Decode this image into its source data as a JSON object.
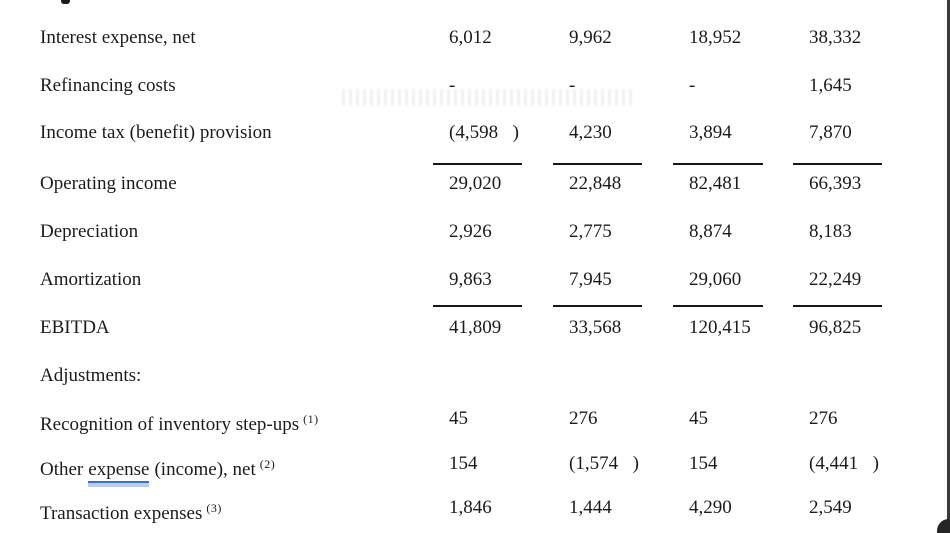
{
  "colors": {
    "text": "#1b1b1b",
    "rule": "#161616",
    "underline_accent": "#3f6fc8",
    "window_border": "#3a3a3a",
    "background": "#ffffff"
  },
  "table": {
    "rows": [
      {
        "label": "Interest expense, net",
        "sup": "",
        "cells": [
          {
            "t": "6,012",
            "p": ""
          },
          {
            "t": "9,962",
            "p": ""
          },
          {
            "t": "18,952",
            "p": ""
          },
          {
            "t": "38,332",
            "p": ""
          }
        ]
      },
      {
        "label": "Refinancing costs",
        "sup": "",
        "cells": [
          {
            "t": "-",
            "p": ""
          },
          {
            "t": "-",
            "p": ""
          },
          {
            "t": "-",
            "p": ""
          },
          {
            "t": "1,645",
            "p": ""
          }
        ]
      },
      {
        "label": "Income tax (benefit) provision",
        "sup": "",
        "cells": [
          {
            "t": "(4,598",
            "p": ")"
          },
          {
            "t": "4,230",
            "p": ""
          },
          {
            "t": "3,894",
            "p": ""
          },
          {
            "t": "7,870",
            "p": ""
          }
        ]
      },
      {
        "label": "Operating income",
        "sup": "",
        "rule_above": true,
        "cells": [
          {
            "t": "29,020",
            "p": ""
          },
          {
            "t": "22,848",
            "p": ""
          },
          {
            "t": "82,481",
            "p": ""
          },
          {
            "t": "66,393",
            "p": ""
          }
        ]
      },
      {
        "label": "Depreciation",
        "sup": "",
        "cells": [
          {
            "t": "2,926",
            "p": ""
          },
          {
            "t": "2,775",
            "p": ""
          },
          {
            "t": "8,874",
            "p": ""
          },
          {
            "t": "8,183",
            "p": ""
          }
        ]
      },
      {
        "label": "Amortization",
        "sup": "",
        "cells": [
          {
            "t": "9,863",
            "p": ""
          },
          {
            "t": "7,945",
            "p": ""
          },
          {
            "t": "29,060",
            "p": ""
          },
          {
            "t": "22,249",
            "p": ""
          }
        ]
      },
      {
        "label": "EBITDA",
        "sup": "",
        "rule_above": true,
        "cells": [
          {
            "t": "41,809",
            "p": ""
          },
          {
            "t": "33,568",
            "p": ""
          },
          {
            "t": "120,415",
            "p": ""
          },
          {
            "t": "96,825",
            "p": ""
          }
        ]
      },
      {
        "label": "Adjustments:",
        "sup": "",
        "cells": [
          {
            "t": "",
            "p": ""
          },
          {
            "t": "",
            "p": ""
          },
          {
            "t": "",
            "p": ""
          },
          {
            "t": "",
            "p": ""
          }
        ]
      },
      {
        "label": "Recognition of inventory step-ups",
        "sup": "(1)",
        "cells": [
          {
            "t": "45",
            "p": ""
          },
          {
            "t": "276",
            "p": ""
          },
          {
            "t": "45",
            "p": ""
          },
          {
            "t": "276",
            "p": ""
          }
        ]
      },
      {
        "label_pre": "Other",
        "label_underlined": "expense",
        "label_post": "(income), net",
        "sup": "(2)",
        "cells": [
          {
            "t": "154",
            "p": ""
          },
          {
            "t": "(1,574",
            "p": ")"
          },
          {
            "t": "154",
            "p": ""
          },
          {
            "t": "(4,441",
            "p": ")"
          }
        ]
      },
      {
        "label": "Transaction expenses",
        "sup": "(3)",
        "cells": [
          {
            "t": "1,846",
            "p": ""
          },
          {
            "t": "1,444",
            "p": ""
          },
          {
            "t": "4,290",
            "p": ""
          },
          {
            "t": "2,549",
            "p": ""
          }
        ]
      }
    ]
  }
}
